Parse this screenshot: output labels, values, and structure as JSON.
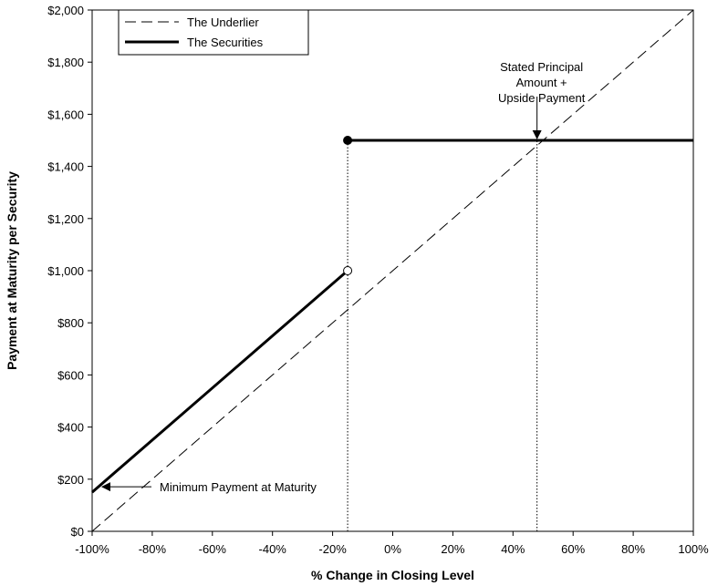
{
  "chart_data": {
    "type": "line",
    "xlabel": "% Change in Closing Level",
    "ylabel": "Payment at Maturity per Security",
    "xlim": [
      -100,
      100
    ],
    "ylim": [
      0,
      2000
    ],
    "x_ticks": [
      -100,
      -80,
      -60,
      -40,
      -20,
      0,
      20,
      40,
      60,
      80,
      100
    ],
    "x_tick_labels": [
      "-100%",
      "-80%",
      "-60%",
      "-40%",
      "-20%",
      "0%",
      "20%",
      "40%",
      "60%",
      "80%",
      "100%"
    ],
    "y_ticks": [
      0,
      200,
      400,
      600,
      800,
      1000,
      1200,
      1400,
      1600,
      1800,
      2000
    ],
    "y_tick_labels": [
      "$0",
      "$200",
      "$400",
      "$600",
      "$800",
      "$1,000",
      "$1,200",
      "$1,400",
      "$1,600",
      "$1,800",
      "$2,000"
    ],
    "grid": false,
    "legend_position": "top-left",
    "series": [
      {
        "name": "The Underlier",
        "style": "dashed",
        "color": "#000000",
        "points": [
          [
            -100,
            0
          ],
          [
            100,
            2000
          ]
        ]
      },
      {
        "name": "The Securities",
        "style": "solid",
        "color": "#000000",
        "segments": [
          [
            [
              -100,
              150
            ],
            [
              -15,
              1000
            ]
          ],
          [
            [
              -15,
              1500
            ],
            [
              100,
              1500
            ]
          ]
        ]
      }
    ],
    "markers": [
      {
        "x": -15,
        "y": 1000,
        "fill": "open"
      },
      {
        "x": -15,
        "y": 1500,
        "fill": "filled"
      }
    ],
    "reference_lines": [
      {
        "x": -15,
        "y_from": 0,
        "y_to": 1500,
        "style": "dotted"
      },
      {
        "x": 48,
        "y_from": 0,
        "y_to": 1500,
        "style": "dotted"
      }
    ],
    "annotations": [
      {
        "lines": [
          "Stated Principal",
          "Amount +",
          "Upside Payment"
        ],
        "x": 48,
        "y": 1500,
        "arrow": "down"
      },
      {
        "lines": [
          "Minimum Payment at Maturity"
        ],
        "x": -100,
        "y": 150,
        "arrow": "left"
      }
    ]
  }
}
